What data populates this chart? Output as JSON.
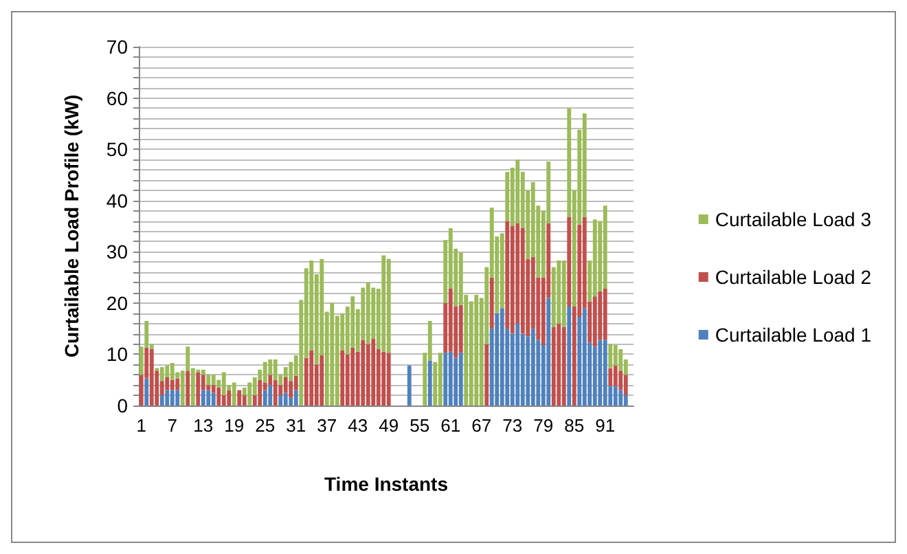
{
  "chart_data": {
    "type": "bar",
    "stacked": true,
    "xlabel": "Time Instants",
    "ylabel": "Curtailable Load Profile (kW)",
    "categories": [
      "1",
      null,
      null,
      null,
      null,
      null,
      "7",
      null,
      null,
      null,
      null,
      null,
      "13",
      null,
      null,
      null,
      null,
      null,
      "19",
      null,
      null,
      null,
      null,
      null,
      "25",
      null,
      null,
      null,
      null,
      null,
      "31",
      null,
      null,
      null,
      null,
      null,
      "37",
      null,
      null,
      null,
      null,
      null,
      "43",
      null,
      null,
      null,
      null,
      null,
      "49",
      null,
      null,
      null,
      null,
      null,
      "55",
      null,
      null,
      null,
      null,
      null,
      "61",
      null,
      null,
      null,
      null,
      null,
      "67",
      null,
      null,
      null,
      null,
      null,
      "73",
      null,
      null,
      null,
      null,
      null,
      "79",
      null,
      null,
      null,
      null,
      null,
      "85",
      null,
      null,
      null,
      null,
      null,
      "91",
      null,
      null,
      null,
      null,
      null
    ],
    "series": [
      {
        "name": "Curtailable Load 1",
        "color": "#4f81bd",
        "values": [
          0,
          5.3,
          0,
          0,
          2,
          3,
          3,
          3,
          0,
          0,
          0,
          0,
          3,
          3,
          2.5,
          0,
          0,
          0,
          0,
          0,
          0,
          0,
          0,
          0,
          3,
          4,
          0,
          2,
          2.5,
          1.5,
          3,
          0,
          0,
          0,
          0,
          0,
          0,
          0,
          0,
          0,
          0,
          0,
          0,
          0,
          0,
          0,
          0,
          0,
          0,
          0,
          0,
          0,
          7.8,
          0,
          0,
          0,
          8.8,
          0,
          0,
          10.3,
          10.5,
          9.3,
          10.3,
          0,
          0,
          0,
          0,
          0,
          15,
          18,
          19,
          15,
          14,
          16,
          14,
          13.5,
          15,
          12.8,
          11.8,
          21,
          0,
          0,
          0,
          19.3,
          0,
          17.3,
          19,
          12.3,
          11.5,
          12.8,
          12.8,
          3.8,
          3.8,
          3,
          2,
          0
        ]
      },
      {
        "name": "Curtailable Load 2",
        "color": "#c0504d",
        "values": [
          6,
          6,
          11,
          6.8,
          2.8,
          2.5,
          2,
          2.3,
          0,
          6.8,
          0,
          6.5,
          3,
          1,
          1.5,
          3.5,
          2,
          3,
          0,
          3,
          2,
          0,
          2,
          5,
          1.5,
          2,
          5,
          2,
          3,
          3.3,
          2.8,
          0,
          9.3,
          10.8,
          8,
          9.8,
          0,
          0,
          0,
          10.8,
          10,
          11.3,
          10.5,
          12.8,
          12,
          13,
          11,
          10.5,
          10.3,
          0,
          0,
          0,
          0,
          0,
          0,
          0,
          0,
          0,
          0,
          9.7,
          12.3,
          10,
          9.3,
          0,
          0,
          0,
          0,
          12,
          10,
          0,
          0,
          21,
          21,
          19.6,
          20.6,
          15.1,
          14,
          12.2,
          13.2,
          14.6,
          15.3,
          16,
          15.3,
          17.5,
          19.3,
          18,
          17.8,
          8,
          9.8,
          9.5,
          10,
          3.5,
          4,
          3.8,
          4,
          0
        ]
      },
      {
        "name": "Curtailable Load 3",
        "color": "#9bbb59",
        "values": [
          5.5,
          5.2,
          1,
          0.5,
          2.7,
          2.3,
          3.3,
          1.2,
          6.8,
          4.7,
          7.3,
          0.5,
          1,
          2,
          2,
          1.5,
          4.5,
          1,
          4.5,
          0,
          1.5,
          4.5,
          3.5,
          2,
          4,
          3,
          4,
          2,
          2,
          3.7,
          4,
          20.6,
          17.5,
          17.5,
          17.6,
          18.8,
          18.3,
          20,
          17.5,
          7.2,
          9.3,
          10,
          8.3,
          10.2,
          12,
          10,
          11.8,
          18.8,
          18.3,
          0,
          0,
          0,
          0,
          0,
          0,
          10.3,
          7.7,
          8.5,
          10.3,
          12.3,
          11.8,
          11.3,
          10.2,
          21.6,
          20.3,
          21.6,
          21,
          15,
          13.6,
          15,
          14.6,
          9.6,
          11.4,
          12.4,
          11,
          13.4,
          14.6,
          14,
          13,
          12,
          11.7,
          12.3,
          13,
          21.2,
          22.7,
          18.5,
          20.2,
          8,
          15,
          13.7,
          16.2,
          4.7,
          4,
          4.2,
          3,
          0
        ]
      }
    ],
    "ylim": [
      0,
      70
    ],
    "yticks": [
      0,
      {
        "value": 2,
        "label": null
      },
      {
        "value": 4,
        "label": null
      },
      {
        "value": 6,
        "label": null
      },
      {
        "value": 8,
        "label": null
      },
      10,
      {
        "value": 12,
        "label": null
      },
      {
        "value": 14,
        "label": null
      },
      {
        "value": 16,
        "label": null
      },
      {
        "value": 18,
        "label": null
      },
      20,
      {
        "value": 22,
        "label": null
      },
      {
        "value": 24,
        "label": null
      },
      {
        "value": 26,
        "label": null
      },
      {
        "value": 28,
        "label": null
      },
      30,
      {
        "value": 32,
        "label": null
      },
      {
        "value": 34,
        "label": null
      },
      {
        "value": 36,
        "label": null
      },
      {
        "value": 38,
        "label": null
      },
      40,
      {
        "value": 42,
        "label": null
      },
      {
        "value": 44,
        "label": null
      },
      {
        "value": 46,
        "label": null
      },
      {
        "value": 48,
        "label": null
      },
      50,
      {
        "value": 52,
        "label": null
      },
      {
        "value": 54,
        "label": null
      },
      {
        "value": 56,
        "label": null
      },
      {
        "value": 58,
        "label": null
      },
      60,
      {
        "value": 62,
        "label": null
      },
      {
        "value": 64,
        "label": null
      },
      {
        "value": 66,
        "label": null
      },
      {
        "value": 68,
        "label": null
      },
      70
    ],
    "grid": "y",
    "legend": "right"
  }
}
